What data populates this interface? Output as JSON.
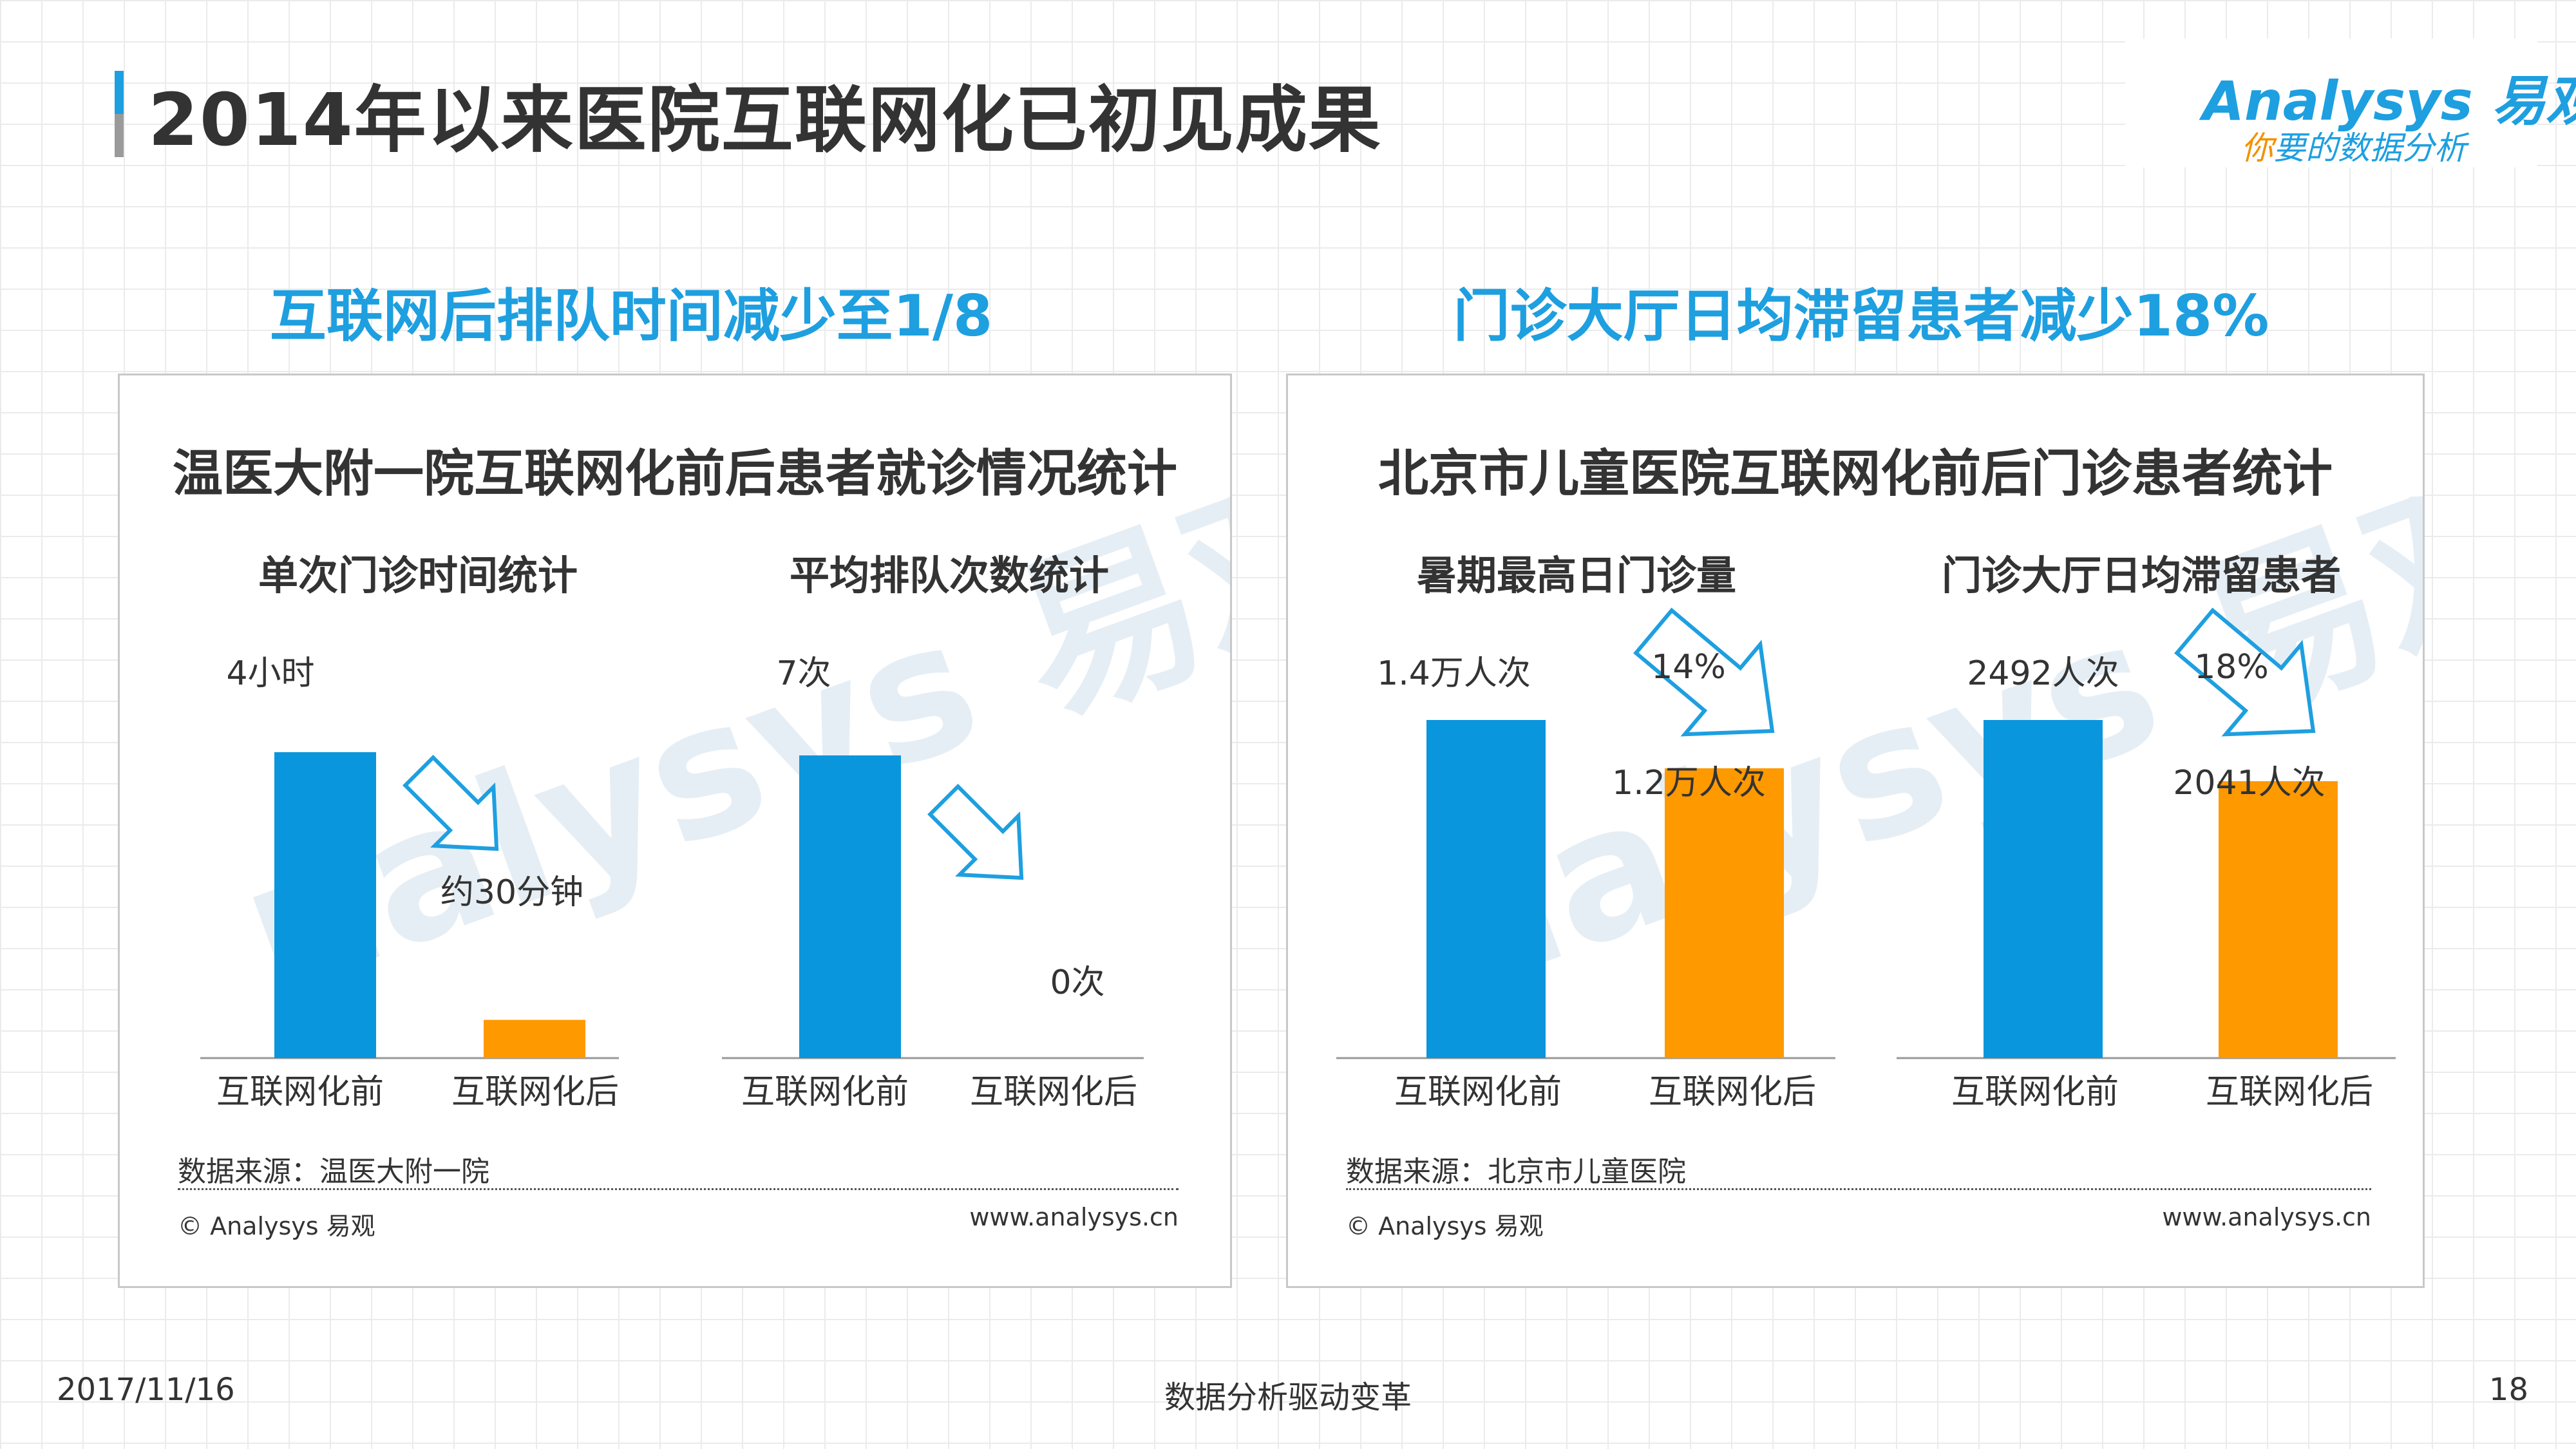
{
  "page": {
    "title": "2014年以来医院互联网化已初见成果",
    "date": "2017/11/16",
    "slogan": "数据分析驱动变革",
    "page_number": "18"
  },
  "logo": {
    "en": "Analysys 易观",
    "tag_ni": "你",
    "tag_rest": "要的数据分析"
  },
  "colors": {
    "accent": "#1e9fe0",
    "before_bar": "#0a96dc",
    "after_bar": "#ff9900",
    "gray": "#9a9a9a"
  },
  "left": {
    "headline": "互联网后排队时间减少至1/8",
    "panel_title": "温医大附一院互联网化前后患者就诊情况统计",
    "source": "数据来源：温医大附一院",
    "copyright": "© Analysys 易观",
    "site": "www.analysys.cn"
  },
  "right": {
    "headline": "门诊大厅日均滞留患者减少18%",
    "panel_title": "北京市儿童医院互联网化前后门诊患者统计",
    "source": "数据来源：北京市儿童医院",
    "copyright": "© Analysys 易观",
    "site": "www.analysys.cn"
  },
  "chart_data": [
    {
      "type": "bar",
      "title": "单次门诊时间统计",
      "categories": [
        "互联网化前",
        "互联网化后"
      ],
      "values": [
        240,
        30
      ],
      "unit": "minutes",
      "data_labels": [
        "4小时",
        "约30分钟"
      ],
      "annotation": ""
    },
    {
      "type": "bar",
      "title": "平均排队次数统计",
      "categories": [
        "互联网化前",
        "互联网化后"
      ],
      "values": [
        7,
        0
      ],
      "data_labels": [
        "7次",
        "0次"
      ],
      "annotation": ""
    },
    {
      "type": "bar",
      "title": "暑期最高日门诊量",
      "categories": [
        "互联网化前",
        "互联网化后"
      ],
      "values": [
        14000,
        12000
      ],
      "data_labels": [
        "1.4万人次",
        "1.2万人次"
      ],
      "annotation": "14%"
    },
    {
      "type": "bar",
      "title": "门诊大厅日均滞留患者",
      "categories": [
        "互联网化前",
        "互联网化后"
      ],
      "values": [
        2492,
        2041
      ],
      "data_labels": [
        "2492人次",
        "2041人次"
      ],
      "annotation": "18%"
    }
  ]
}
